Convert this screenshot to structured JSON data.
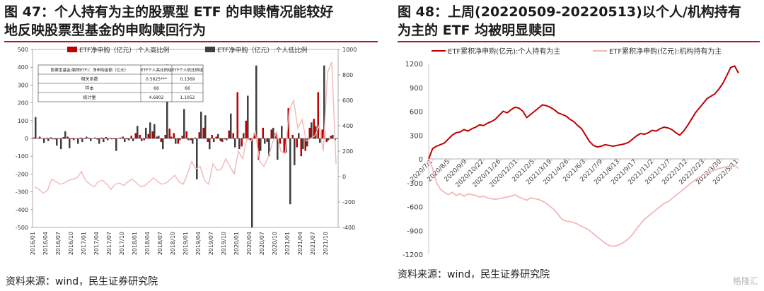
{
  "left": {
    "title_line1": "图 47：个人持有为主的股票型 ETF 的申赎情况能较好",
    "title_line2": "地反映股票型基金的申购赎回行为",
    "source": "资料来源：wind，民生证券研究院",
    "inset_table": {
      "headers": [
        "股票型基金(剔除ETF)：净申购金额（亿元）",
        "ETF个人高比例组",
        "ETF个人低比例组"
      ],
      "rows": [
        [
          "相关系数",
          "0.5625***",
          "0.1369"
        ],
        [
          "样本",
          "66",
          "66"
        ],
        [
          "统计量",
          "4.6902",
          "1.1052"
        ]
      ]
    }
  },
  "right": {
    "title_line1": "图 48：上周(20220509-20220513)以个人/机构持有",
    "title_line2": "为主的 ETF 均被明显赎回",
    "source": "资料来源：wind，民生证券研究院"
  },
  "watermark": "格隆汇",
  "colors": {
    "red": "#c00000",
    "dark": "#404040",
    "pink": "#f2b8b8",
    "title_rule": "#b01c1c"
  },
  "chart_data": [
    {
      "type": "bar",
      "title": "",
      "legend_placement": "top",
      "categories": [
        "2016/01",
        "2016/02",
        "2016/03",
        "2016/04",
        "2016/05",
        "2016/06",
        "2016/07",
        "2016/08",
        "2016/09",
        "2016/10",
        "2016/11",
        "2016/12",
        "2017/01",
        "2017/02",
        "2017/03",
        "2017/04",
        "2017/05",
        "2017/06",
        "2017/07",
        "2017/08",
        "2017/09",
        "2017/10",
        "2017/11",
        "2017/12",
        "2018/01",
        "2018/02",
        "2018/03",
        "2018/04",
        "2018/05",
        "2018/06",
        "2018/07",
        "2018/08",
        "2018/09",
        "2018/10",
        "2018/11",
        "2018/12",
        "2019/01",
        "2019/02",
        "2019/03",
        "2019/04",
        "2019/05",
        "2019/06",
        "2019/07",
        "2019/08",
        "2019/09",
        "2019/10",
        "2019/11",
        "2019/12",
        "2020/01",
        "2020/02",
        "2020/03",
        "2020/04",
        "2020/05",
        "2020/06",
        "2020/07",
        "2020/08",
        "2020/09",
        "2020/10",
        "2020/11",
        "2020/12",
        "2021/01",
        "2021/02",
        "2021/03",
        "2021/04",
        "2021/05",
        "2021/06",
        "2021/07",
        "2021/08",
        "2021/09",
        "2021/10",
        "2021/11",
        "2021/12"
      ],
      "xtick_labels": [
        "2016/01",
        "2016/04",
        "2016/07",
        "2016/10",
        "2017/01",
        "2017/04",
        "2017/07",
        "2017/10",
        "2018/01",
        "2018/04",
        "2018/07",
        "2018/10",
        "2019/01",
        "2019/04",
        "2019/07",
        "2019/10",
        "2020/01",
        "2020/04",
        "2020/07",
        "2020/10",
        "2021/01",
        "2021/04",
        "2021/07",
        "2021/10"
      ],
      "ylim": [
        -500,
        500
      ],
      "yticks": [
        -500,
        -400,
        -300,
        -200,
        -100,
        0,
        100,
        200,
        300,
        400,
        500
      ],
      "y2lim": [
        -400,
        1000
      ],
      "y2ticks": [
        -400,
        -200,
        0,
        200,
        400,
        600,
        800,
        1000
      ],
      "series": [
        {
          "name": "ETF净申购（亿元）:个人高比例",
          "type": "bar",
          "axis": "left",
          "color": "#c00000",
          "values": [
            5,
            3,
            -2,
            4,
            6,
            -5,
            -3,
            8,
            10,
            -4,
            2,
            5,
            -3,
            4,
            2,
            -6,
            5,
            8,
            3,
            -4,
            2,
            10,
            -5,
            15,
            30,
            20,
            -10,
            25,
            40,
            10,
            -20,
            20,
            55,
            30,
            -30,
            15,
            40,
            -10,
            5,
            35,
            60,
            -20,
            20,
            10,
            -15,
            -5,
            45,
            30,
            260,
            -45,
            100,
            -10,
            30,
            -120,
            60,
            -20,
            50,
            30,
            -30,
            -80,
            170,
            20,
            -50,
            -100,
            -70,
            60,
            110,
            260,
            50,
            -20,
            15,
            -10
          ]
        },
        {
          "name": "ETF净申购（亿元）:个人低比例",
          "type": "bar",
          "axis": "left",
          "color": "#404040",
          "values": [
            120,
            10,
            -25,
            -15,
            -5,
            -40,
            -60,
            40,
            -55,
            -10,
            -30,
            -20,
            10,
            -15,
            5,
            -30,
            -20,
            -10,
            -5,
            -70,
            5,
            -20,
            -10,
            -15,
            70,
            -15,
            60,
            90,
            80,
            15,
            -60,
            415,
            10,
            -30,
            -10,
            165,
            -10,
            -30,
            -230,
            150,
            130,
            -60,
            -20,
            25,
            -20,
            -10,
            140,
            -50,
            -60,
            30,
            240,
            -500,
            410,
            -70,
            -30,
            -100,
            60,
            -120,
            70,
            -80,
            -370,
            -150,
            30,
            -60,
            -45,
            90,
            70,
            -25,
            410,
            -10,
            20,
            0
          ]
        },
        {
          "name": "股票型基金（剔除ETF）：净申购金额（亿元）（右轴）",
          "type": "line",
          "axis": "right",
          "color": "#f2b8b8",
          "values": [
            -80,
            -100,
            -130,
            -110,
            -20,
            -40,
            -60,
            -50,
            -30,
            -20,
            -10,
            40,
            -30,
            -60,
            -80,
            -40,
            -30,
            -60,
            -100,
            -60,
            -50,
            -70,
            -40,
            -20,
            -50,
            -80,
            -70,
            -40,
            -10,
            -40,
            -60,
            -50,
            -20,
            10,
            -40,
            -60,
            20,
            120,
            60,
            80,
            -30,
            -60,
            100,
            50,
            60,
            140,
            80,
            20,
            200,
            140,
            300,
            280,
            350,
            120,
            80,
            150,
            260,
            350,
            200,
            180,
            520,
            600,
            380,
            450,
            280,
            300,
            320,
            400,
            200,
            820,
            900,
            100
          ]
        }
      ]
    },
    {
      "type": "line",
      "title": "",
      "legend_placement": "top",
      "xtick_labels": [
        "2020/7/1",
        "2020/8/5",
        "2020/9/9",
        "2020/10/22",
        "2020/11/26",
        "2020/12/31",
        "2021/2/5",
        "2021/3/19",
        "2021/4/26",
        "2021/6/3",
        "2021/7/9",
        "2021/8/13",
        "2021/9/17",
        "2021/11/2",
        "2021/12/7",
        "2022/1/12",
        "2022/2/23",
        "2022/3/30",
        "2022/5/11"
      ],
      "ylim": [
        -1200,
        1200
      ],
      "yticks": [
        -1200,
        -900,
        -600,
        -300,
        0,
        300,
        600,
        900,
        1200
      ],
      "series": [
        {
          "name": "ETF累积净申购(亿元):个人持有为主",
          "color": "#c00000",
          "values": [
            0,
            130,
            160,
            180,
            200,
            250,
            300,
            330,
            340,
            370,
            350,
            380,
            400,
            430,
            420,
            450,
            470,
            500,
            550,
            600,
            580,
            620,
            650,
            640,
            600,
            520,
            560,
            600,
            640,
            680,
            670,
            650,
            620,
            580,
            560,
            540,
            500,
            470,
            420,
            380,
            300,
            220,
            170,
            150,
            160,
            180,
            170,
            160,
            170,
            180,
            190,
            210,
            250,
            290,
            320,
            310,
            330,
            360,
            350,
            380,
            400,
            390,
            370,
            330,
            300,
            350,
            420,
            500,
            580,
            640,
            700,
            760,
            790,
            820,
            880,
            950,
            1050,
            1150,
            1170,
            1080
          ]
        },
        {
          "name": "ETF累积净申购(亿元):机构持有为主",
          "color": "#f2b8b8",
          "values": [
            0,
            -120,
            -300,
            -380,
            -420,
            -450,
            -420,
            -460,
            -440,
            -470,
            -440,
            -450,
            -460,
            -480,
            -470,
            -490,
            -500,
            -510,
            -500,
            -490,
            -480,
            -470,
            -450,
            -480,
            -500,
            -520,
            -490,
            -500,
            -510,
            -530,
            -560,
            -600,
            -640,
            -700,
            -760,
            -780,
            -790,
            -800,
            -820,
            -850,
            -870,
            -900,
            -940,
            -980,
            -1020,
            -1060,
            -1090,
            -1100,
            -1090,
            -1070,
            -1040,
            -1000,
            -950,
            -880,
            -820,
            -760,
            -720,
            -680,
            -640,
            -600,
            -560,
            -540,
            -500,
            -460,
            -420,
            -380,
            -340,
            -300,
            -260,
            -230,
            -200,
            -180,
            -160,
            -140,
            -120,
            -110,
            -100,
            -90,
            -80,
            -120
          ]
        }
      ]
    }
  ]
}
